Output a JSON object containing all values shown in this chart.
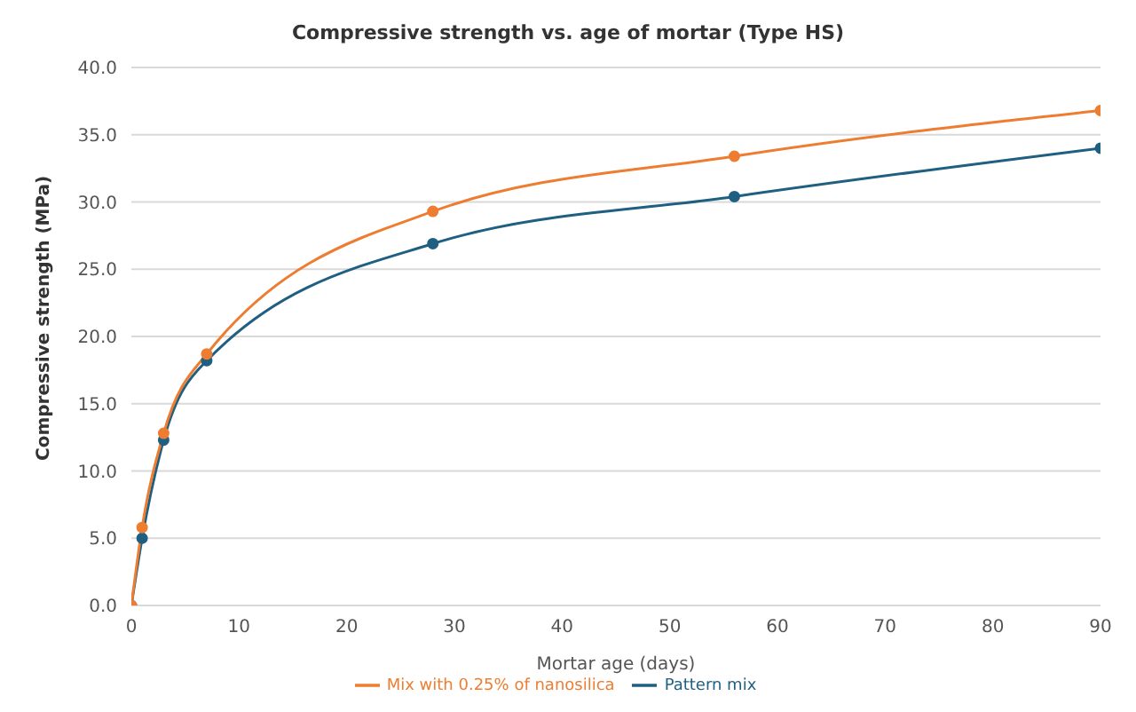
{
  "chart_data": {
    "type": "line",
    "title": "Compressive strength vs. age of mortar (Type HS)",
    "xlabel": "Mortar age (days)",
    "ylabel": "Compressive strength (MPa)",
    "x": [
      0,
      1,
      3,
      7,
      28,
      56,
      90
    ],
    "series": [
      {
        "name": "Pattern mix",
        "color": "#1f5f82",
        "values": [
          0,
          5.0,
          12.3,
          18.2,
          26.9,
          30.4,
          34.0
        ]
      },
      {
        "name": "Mix with 0.25% of nanosilica",
        "color": "#ed7d31",
        "values": [
          0,
          5.8,
          12.8,
          18.7,
          29.3,
          33.4,
          36.8
        ]
      }
    ],
    "xlim": [
      0,
      90
    ],
    "xticks": [
      0,
      10,
      20,
      30,
      40,
      50,
      60,
      70,
      80,
      90
    ],
    "ylim": [
      0,
      40
    ],
    "yticks": [
      {
        "value": 0,
        "label": "0.0"
      },
      {
        "value": 5,
        "label": "5.0"
      },
      {
        "value": 10,
        "label": "10.0"
      },
      {
        "value": 15,
        "label": "15.0"
      },
      {
        "value": 20,
        "label": "20.0"
      },
      {
        "value": 25,
        "label": "25.0"
      },
      {
        "value": 30,
        "label": "30.0"
      },
      {
        "value": 35,
        "label": "35.0"
      },
      {
        "value": 40,
        "label": "40.0"
      }
    ],
    "grid": "y",
    "legend": "bottom",
    "marker": "circle",
    "line_style": "solid"
  }
}
